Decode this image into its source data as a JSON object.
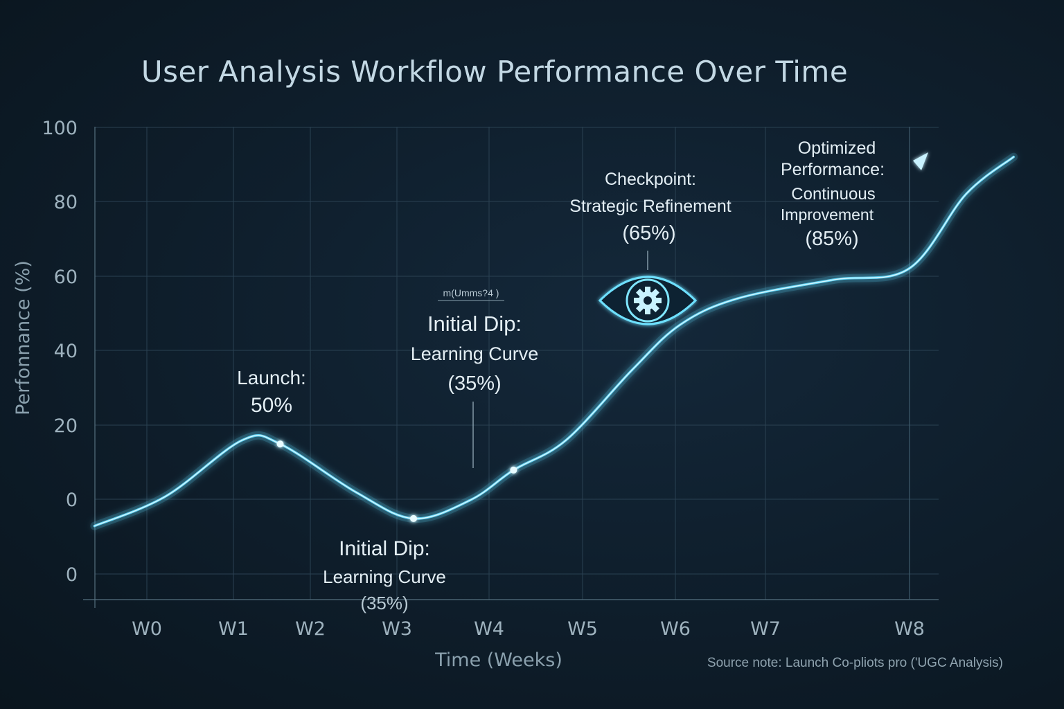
{
  "chart_data": {
    "type": "line",
    "title": "User Analysis Workflow Performance Over Time",
    "xlabel": "Time (Weeks)",
    "ylabel": "Perfonnance (%)",
    "x_tick_labels": [
      "W0",
      "W1",
      "W2",
      "W3",
      "W4",
      "W5",
      "W6",
      "W7",
      "W8"
    ],
    "y_tick_labels": [
      "100",
      "80",
      "60",
      "40",
      "20",
      "0",
      "0"
    ],
    "grid": true,
    "series": [
      {
        "color": "#5fd4f5",
        "points": [
          {
            "x": -0.55,
            "y": -7
          },
          {
            "x": 0.2,
            "y": 1
          },
          {
            "x": 1.0,
            "y": 16
          },
          {
            "x": 1.4,
            "y": 15
          },
          {
            "x": 2.2,
            "y": 2
          },
          {
            "x": 2.8,
            "y": -5
          },
          {
            "x": 3.4,
            "y": 0
          },
          {
            "x": 3.85,
            "y": 8
          },
          {
            "x": 4.4,
            "y": 16
          },
          {
            "x": 5.1,
            "y": 35
          },
          {
            "x": 5.6,
            "y": 47
          },
          {
            "x": 6.2,
            "y": 54
          },
          {
            "x": 7.2,
            "y": 59
          },
          {
            "x": 8.0,
            "y": 62
          },
          {
            "x": 8.6,
            "y": 82
          },
          {
            "x": 9.1,
            "y": 92
          }
        ],
        "markers": [
          {
            "x": 1.4,
            "y": 15
          },
          {
            "x": 2.8,
            "y": -5
          },
          {
            "x": 3.85,
            "y": 8
          }
        ]
      }
    ],
    "annotations": [
      {
        "lines": [
          "Launch:",
          "50%"
        ]
      },
      {
        "lines": [
          "m(Umms?4 )"
        ]
      },
      {
        "lines": [
          "Initial Dip:",
          "Learning Curve",
          "(35%)"
        ]
      },
      {
        "lines": [
          "Initial Dip:",
          "Learning Curve",
          "(35%)"
        ]
      },
      {
        "lines": [
          "Checkpoint:",
          "Strategic Refinement",
          "(65%)"
        ]
      },
      {
        "lines": [
          "Optimized",
          "Performance:",
          "Continuous",
          "Improvement",
          "(85%)"
        ]
      }
    ],
    "icons": [
      "eye-gear-icon",
      "arrow-head-icon"
    ],
    "source_note": "Source note: Launch Co-pliots pro ('UGC  Analysis)"
  }
}
